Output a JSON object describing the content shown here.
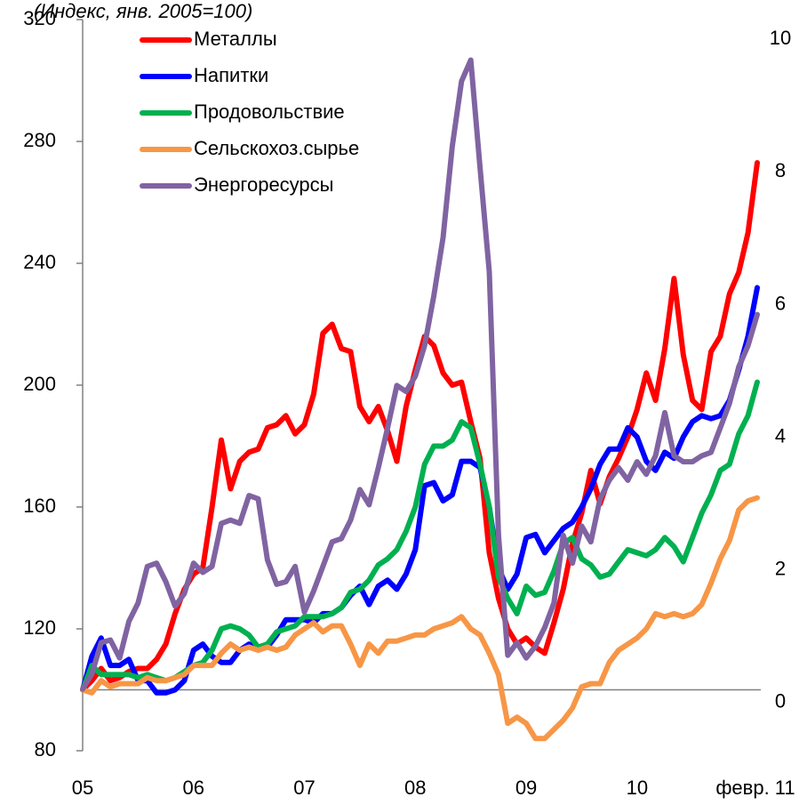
{
  "chart_data": {
    "type": "line",
    "title": "(Индекс, янв. 2005=100)",
    "categories": [
      "05",
      null,
      null,
      null,
      null,
      null,
      null,
      null,
      null,
      null,
      null,
      null,
      "06",
      null,
      null,
      null,
      null,
      null,
      null,
      null,
      null,
      null,
      null,
      null,
      "07",
      null,
      null,
      null,
      null,
      null,
      null,
      null,
      null,
      null,
      null,
      null,
      "08",
      null,
      null,
      null,
      null,
      null,
      null,
      null,
      null,
      null,
      null,
      null,
      "09",
      null,
      null,
      null,
      null,
      null,
      null,
      null,
      null,
      null,
      null,
      null,
      "10",
      null,
      null,
      null,
      null,
      null,
      null,
      null,
      null,
      null,
      null,
      null,
      null,
      "февр. 11"
    ],
    "ylim": [
      80,
      320
    ],
    "yticks": [
      80,
      120,
      160,
      200,
      240,
      280,
      320
    ],
    "y2lim": [
      -0.73,
      10.3
    ],
    "y2ticks": [
      0,
      2,
      4,
      6,
      8,
      10
    ],
    "reference_line": 100,
    "legend": "upper left",
    "series": [
      {
        "name": "Металлы",
        "color": "#ff0000",
        "values": [
          100,
          103,
          107,
          103,
          104,
          106,
          107,
          107,
          110,
          115,
          125,
          133,
          138,
          140,
          160,
          182,
          166,
          175,
          178,
          179,
          186,
          187,
          190,
          184,
          187,
          197,
          217,
          220,
          212,
          211,
          193,
          188,
          193,
          185,
          175,
          193,
          205,
          216,
          213,
          204,
          200,
          201,
          188,
          176,
          145,
          130,
          120,
          115,
          117,
          114,
          112,
          122,
          133,
          148,
          158,
          172,
          161,
          170,
          176,
          183,
          192,
          204,
          195,
          212,
          235,
          210,
          195,
          192,
          211,
          216,
          230,
          237,
          250,
          273
        ]
      },
      {
        "name": "Напитки",
        "color": "#0000ff",
        "values": [
          100,
          111,
          117,
          108,
          108,
          110,
          103,
          103,
          99,
          99,
          100,
          103,
          113,
          115,
          111,
          109,
          109,
          113,
          115,
          114,
          114,
          118,
          123,
          123,
          123,
          122,
          125,
          125,
          127,
          131,
          134,
          128,
          134,
          136,
          133,
          138,
          146,
          167,
          168,
          162,
          164,
          175,
          175,
          173,
          160,
          140,
          133,
          138,
          150,
          151,
          145,
          149,
          153,
          155,
          160,
          166,
          174,
          179,
          179,
          186,
          183,
          175,
          172,
          178,
          176,
          183,
          188,
          190,
          189,
          190,
          195,
          205,
          216,
          232
        ]
      },
      {
        "name": "Продовольствие",
        "color": "#00b050",
        "values": [
          100,
          108,
          105,
          105,
          105,
          105,
          104,
          105,
          104,
          103,
          104,
          106,
          108,
          109,
          113,
          120,
          121,
          120,
          118,
          114,
          115,
          119,
          120,
          121,
          124,
          124,
          124,
          125,
          127,
          132,
          133,
          136,
          141,
          143,
          146,
          152,
          160,
          174,
          180,
          180,
          182,
          188,
          186,
          174,
          160,
          137,
          130,
          125,
          134,
          131,
          132,
          139,
          148,
          150,
          143,
          141,
          137,
          138,
          142,
          146,
          145,
          144,
          146,
          150,
          147,
          142,
          150,
          158,
          164,
          172,
          174,
          184,
          190,
          201
        ]
      },
      {
        "name": "Сельскохоз.сырье",
        "color": "#f79646",
        "values": [
          100,
          99,
          103,
          101,
          102,
          102,
          102,
          104,
          103,
          103,
          104,
          105,
          108,
          108,
          108,
          112,
          115,
          113,
          114,
          113,
          114,
          113,
          114,
          118,
          120,
          122,
          119,
          121,
          121,
          115,
          108,
          115,
          112,
          116,
          116,
          117,
          118,
          118,
          120,
          121,
          122,
          124,
          120,
          118,
          112,
          105,
          89,
          91,
          89,
          84,
          84,
          87,
          90,
          94,
          101,
          102,
          102,
          109,
          113,
          115,
          117,
          120,
          125,
          124,
          125,
          124,
          125,
          128,
          135,
          143,
          149,
          159,
          162,
          163
        ]
      },
      {
        "name": "Энергоресурсы",
        "color": "#8064a2",
        "axis": "y2",
        "values": [
          0.2,
          0.43,
          0.9,
          0.94,
          0.67,
          1.22,
          1.5,
          2.05,
          2.1,
          1.82,
          1.45,
          1.64,
          2.1,
          1.96,
          2.05,
          2.7,
          2.75,
          2.7,
          3.12,
          3.07,
          2.15,
          1.78,
          1.82,
          2.05,
          1.36,
          1.68,
          2.05,
          2.42,
          2.47,
          2.75,
          3.21,
          2.98,
          3.54,
          4.14,
          4.78,
          4.69,
          4.92,
          5.38,
          6.13,
          7.01,
          8.39,
          9.37,
          9.69,
          8.07,
          6.5,
          2.52,
          0.71,
          0.9,
          0.67,
          0.85,
          1.13,
          1.5,
          2.52,
          2.1,
          2.66,
          2.42,
          3.07,
          3.35,
          3.54,
          3.35,
          3.63,
          3.44,
          3.72,
          4.37,
          3.72,
          3.63,
          3.63,
          3.72,
          3.77,
          4.14,
          4.51,
          5.06,
          5.38,
          5.85
        ]
      }
    ]
  }
}
